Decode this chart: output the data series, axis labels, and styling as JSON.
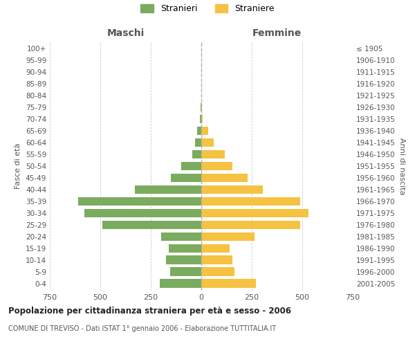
{
  "age_groups": [
    "100+",
    "95-99",
    "90-94",
    "85-89",
    "80-84",
    "75-79",
    "70-74",
    "65-69",
    "60-64",
    "55-59",
    "50-54",
    "45-49",
    "40-44",
    "35-39",
    "30-34",
    "25-29",
    "20-24",
    "15-19",
    "10-14",
    "5-9",
    "0-4"
  ],
  "birth_years": [
    "≤ 1905",
    "1906-1910",
    "1911-1915",
    "1916-1920",
    "1921-1925",
    "1926-1930",
    "1931-1935",
    "1936-1940",
    "1941-1945",
    "1946-1950",
    "1951-1955",
    "1956-1960",
    "1961-1965",
    "1966-1970",
    "1971-1975",
    "1976-1980",
    "1981-1985",
    "1986-1990",
    "1991-1995",
    "1996-2000",
    "2001-2005"
  ],
  "maschi": [
    0,
    0,
    0,
    0,
    0,
    5,
    8,
    20,
    30,
    45,
    100,
    150,
    330,
    610,
    580,
    490,
    200,
    160,
    175,
    155,
    205
  ],
  "femmine": [
    0,
    0,
    0,
    0,
    0,
    5,
    8,
    35,
    60,
    115,
    155,
    230,
    305,
    490,
    530,
    490,
    265,
    140,
    155,
    165,
    270
  ],
  "male_color": "#7aab5e",
  "female_color": "#f5c242",
  "xlim": 750,
  "background_color": "#ffffff",
  "grid_color": "#cccccc",
  "title": "Popolazione per cittadinanza straniera per età e sesso - 2006",
  "subtitle": "COMUNE DI TREVISO - Dati ISTAT 1° gennaio 2006 - Elaborazione TUTTITALIA.IT",
  "legend_stranieri": "Stranieri",
  "legend_straniere": "Straniere",
  "xlabel_left": "Maschi",
  "xlabel_right": "Femmine",
  "ylabel_left": "Fasce di età",
  "ylabel_right": "Anni di nascita"
}
